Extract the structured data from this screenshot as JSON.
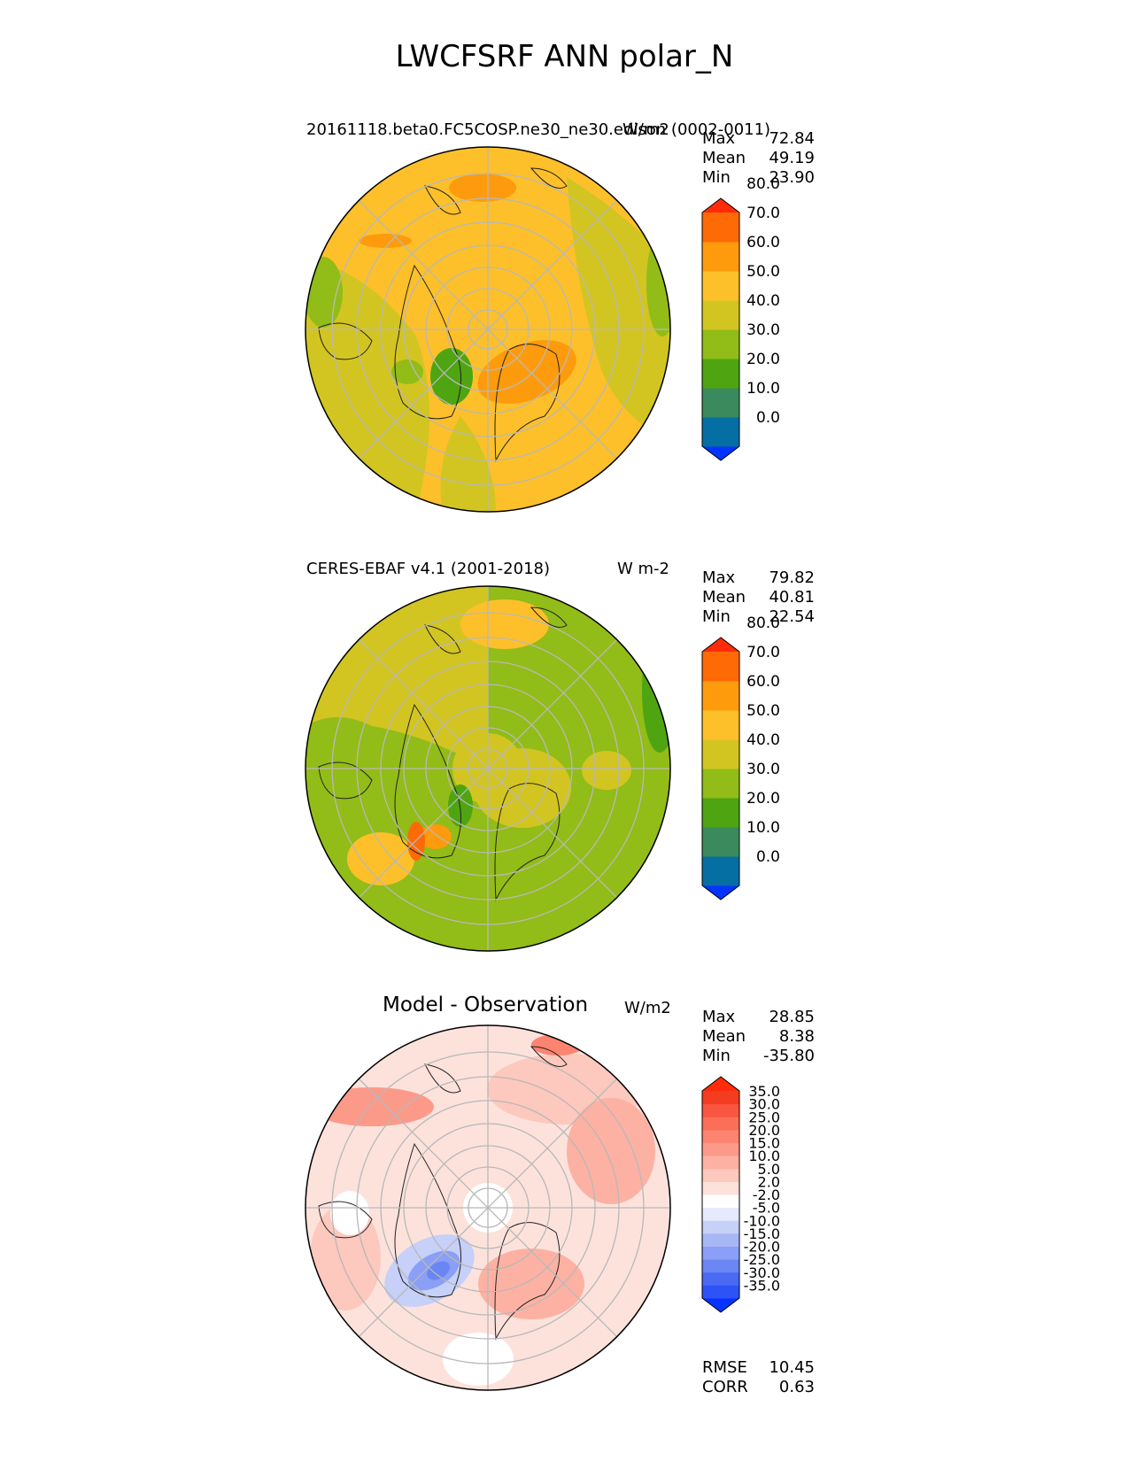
{
  "suptitle": "LWCFSRF ANN polar_N",
  "panels": [
    {
      "id": "test",
      "title": "20161118.beta0.FC5COSP.ne30_ne30.edison (0002-0011)",
      "units": "W/m2",
      "stats": [
        {
          "label": "Max",
          "value": "72.84"
        },
        {
          "label": "Mean",
          "value": "49.19"
        },
        {
          "label": "Min",
          "value": "23.90"
        }
      ],
      "colorbar": {
        "colors": [
          "#0433ff",
          "#056ea3",
          "#3a8a5d",
          "#4ea511",
          "#92bc17",
          "#d2c521",
          "#fdc02a",
          "#fe9b0d",
          "#fe6a06",
          "#ff2b0b"
        ],
        "labels": [
          "0.0",
          "10.0",
          "20.0",
          "30.0",
          "40.0",
          "50.0",
          "60.0",
          "70.0",
          "80.0"
        ]
      }
    },
    {
      "id": "reference",
      "title": "CERES-EBAF v4.1 (2001-2018)",
      "units": "W m-2",
      "stats": [
        {
          "label": "Max",
          "value": "79.82"
        },
        {
          "label": "Mean",
          "value": "40.81"
        },
        {
          "label": "Min",
          "value": "22.54"
        }
      ],
      "colorbar": {
        "colors": [
          "#0433ff",
          "#056ea3",
          "#3a8a5d",
          "#4ea511",
          "#92bc17",
          "#d2c521",
          "#fdc02a",
          "#fe9b0d",
          "#fe6a06",
          "#ff2b0b"
        ],
        "labels": [
          "0.0",
          "10.0",
          "20.0",
          "30.0",
          "40.0",
          "50.0",
          "60.0",
          "70.0",
          "80.0"
        ]
      }
    },
    {
      "id": "difference",
      "title": "Model - Observation",
      "units": "W/m2",
      "stats": [
        {
          "label": "Max",
          "value": "28.85"
        },
        {
          "label": "Mean",
          "value": "8.38"
        },
        {
          "label": "Min",
          "value": "-35.80"
        }
      ],
      "colorbar": {
        "colors": [
          "#0433ff",
          "#2d52f6",
          "#4a6af3",
          "#6a86f2",
          "#8a9ff5",
          "#a7b7f6",
          "#c6d0f9",
          "#e4e9fc",
          "#ffffff",
          "#fde2dc",
          "#fdc8bd",
          "#fdb1a3",
          "#fc9a8a",
          "#fc8470",
          "#fb6e58",
          "#f85641",
          "#f43c20",
          "#ff2b0b"
        ],
        "labels": [
          "-35.0",
          "-30.0",
          "-25.0",
          "-20.0",
          "-15.0",
          "-10.0",
          "-5.0",
          "-2.0",
          "2.0",
          "5.0",
          "10.0",
          "15.0",
          "20.0",
          "25.0",
          "30.0",
          "35.0"
        ]
      },
      "extra_stats": [
        {
          "label": "RMSE",
          "value": "10.45"
        },
        {
          "label": "CORR",
          "value": "0.63"
        }
      ]
    }
  ]
}
